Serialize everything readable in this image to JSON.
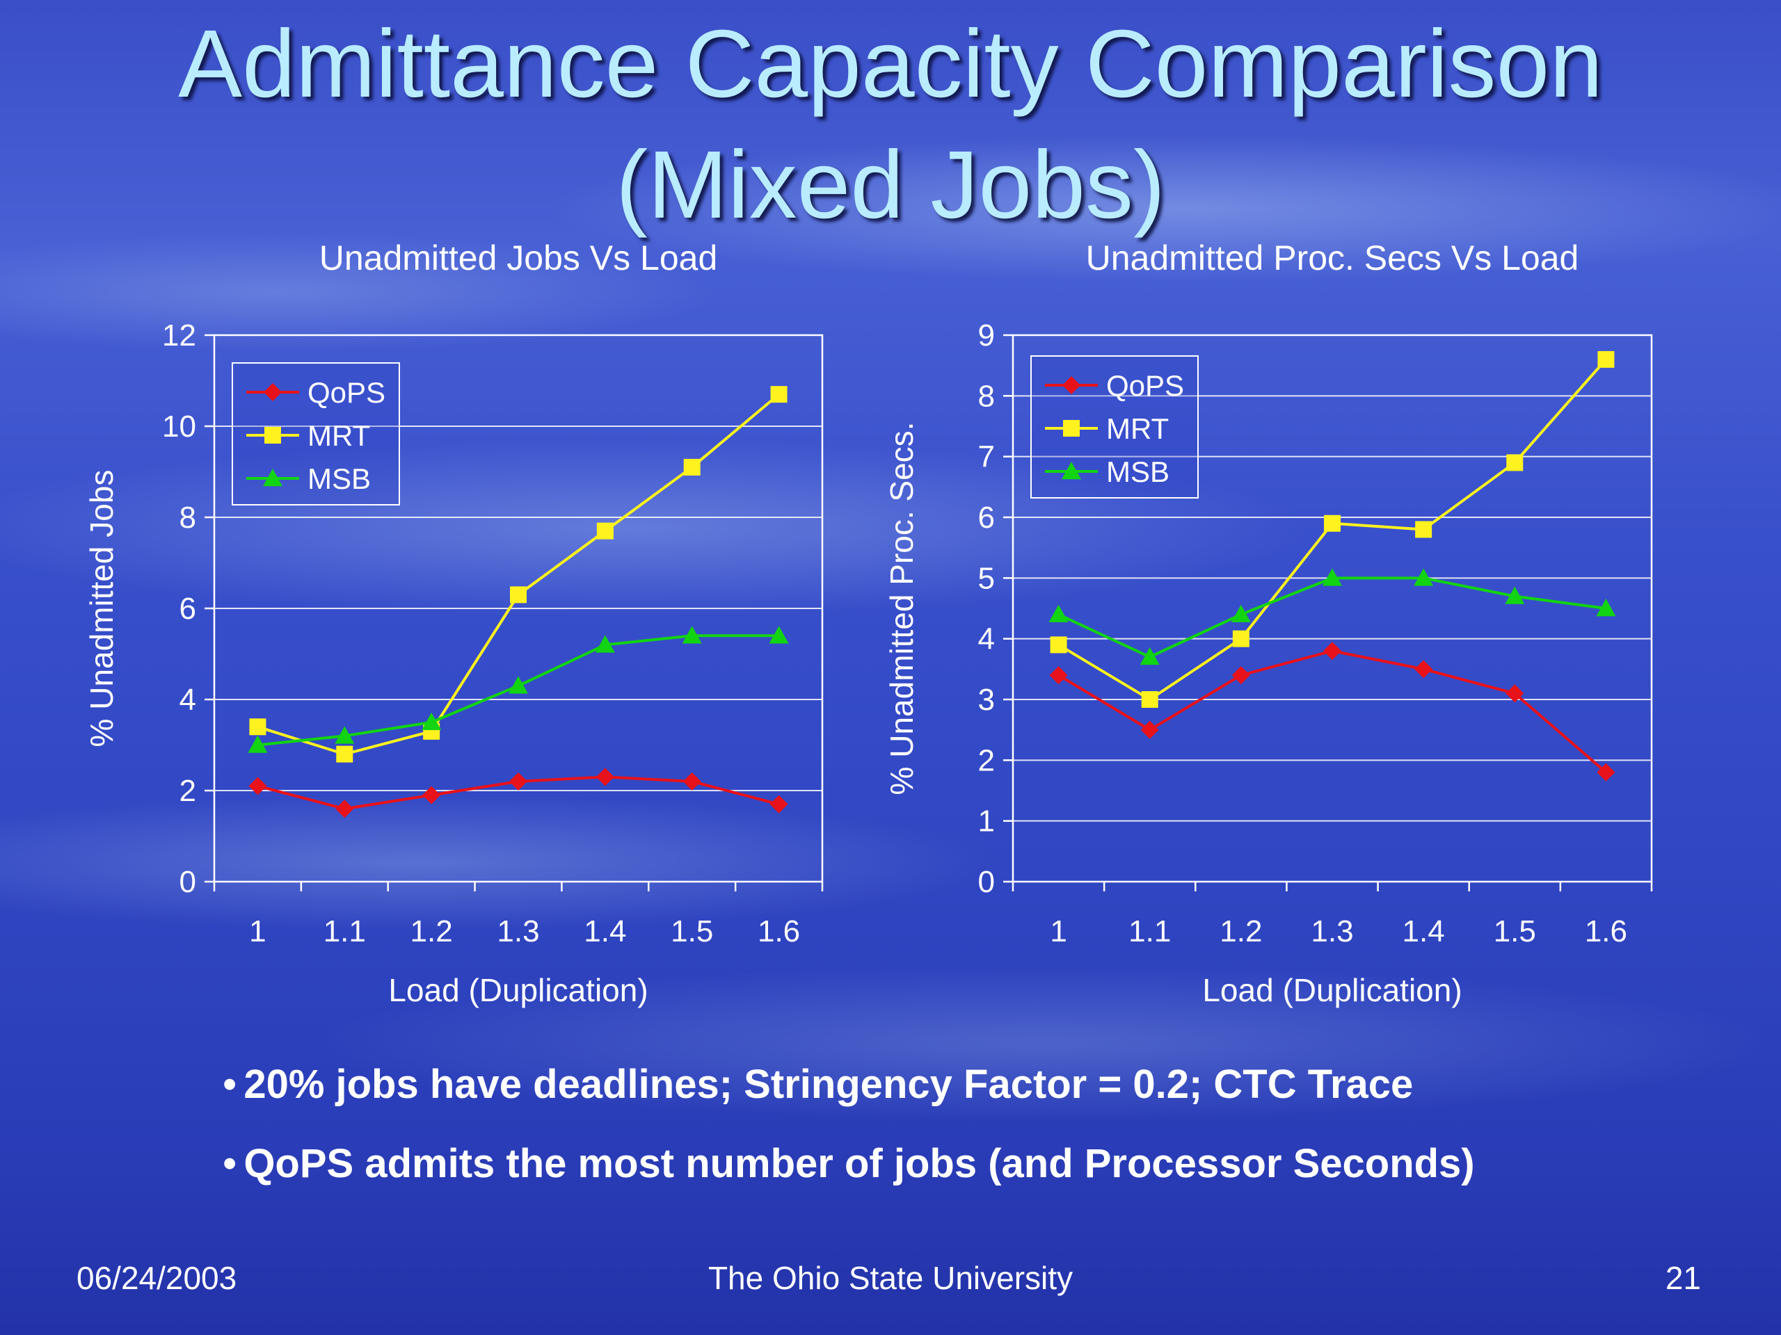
{
  "slide": {
    "title_line_1": "Admittance Capacity Comparison",
    "title_line_2": "(Mixed Jobs)",
    "bullets": [
      "20% jobs have deadlines; Stringency Factor = 0.2; CTC Trace",
      "QoPS admits the most number of jobs (and Processor Seconds)"
    ],
    "footer": {
      "date": "06/24/2003",
      "organization": "The Ohio State University",
      "page": "21"
    }
  },
  "colors": {
    "QoPS": "#e8121a",
    "MRT": "#fff21e",
    "MSB": "#12d412",
    "axis_text": "#ffffff",
    "gridline": "#ffffff"
  },
  "chart_data": [
    {
      "type": "line",
      "title": "Unadmitted Jobs Vs Load",
      "xlabel": "Load (Duplication)",
      "ylabel": "% Unadmitted Jobs",
      "categories": [
        "1",
        "1.1",
        "1.2",
        "1.3",
        "1.4",
        "1.5",
        "1.6"
      ],
      "ylim": [
        0,
        12
      ],
      "yticks": [
        0,
        2,
        4,
        6,
        8,
        10,
        12
      ],
      "grid": true,
      "legend": "top-left",
      "series": [
        {
          "name": "QoPS",
          "marker": "diamond",
          "values": [
            2.1,
            1.6,
            1.9,
            2.2,
            2.3,
            2.2,
            1.7
          ]
        },
        {
          "name": "MRT",
          "marker": "square",
          "values": [
            3.4,
            2.8,
            3.3,
            6.3,
            7.7,
            9.1,
            10.7
          ]
        },
        {
          "name": "MSB",
          "marker": "triangle",
          "values": [
            3.0,
            3.2,
            3.5,
            4.3,
            5.2,
            5.4,
            5.4
          ]
        }
      ]
    },
    {
      "type": "line",
      "title": "Unadmitted Proc. Secs Vs Load",
      "xlabel": "Load (Duplication)",
      "ylabel": "% Unadmitted Proc. Secs.",
      "categories": [
        "1",
        "1.1",
        "1.2",
        "1.3",
        "1.4",
        "1.5",
        "1.6"
      ],
      "ylim": [
        0,
        9
      ],
      "yticks": [
        0,
        1,
        2,
        3,
        4,
        5,
        6,
        7,
        8,
        9
      ],
      "grid": true,
      "legend": "top-left",
      "series": [
        {
          "name": "QoPS",
          "marker": "diamond",
          "values": [
            3.4,
            2.5,
            3.4,
            3.8,
            3.5,
            3.1,
            1.8
          ]
        },
        {
          "name": "MRT",
          "marker": "square",
          "values": [
            3.9,
            3.0,
            4.0,
            5.9,
            5.8,
            6.9,
            8.6
          ]
        },
        {
          "name": "MSB",
          "marker": "triangle",
          "values": [
            4.4,
            3.7,
            4.4,
            5.0,
            5.0,
            4.7,
            4.5
          ]
        }
      ]
    }
  ]
}
